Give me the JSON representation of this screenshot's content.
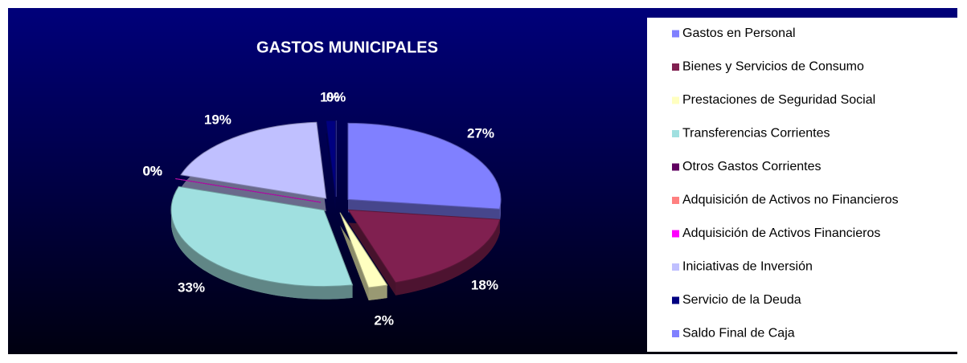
{
  "chart_data": {
    "type": "pie",
    "title": "GASTOS MUNICIPALES",
    "categories": [
      "Gastos en Personal",
      "Bienes y Servicios de Consumo",
      "Prestaciones de Seguridad Social",
      "Transferencias Corrientes",
      "Otros Gastos Corrientes",
      "Adquisición de Activos no Financieros",
      "Adquisición de Activos Financieros",
      "Iniciativas de Inversión",
      "Servicio de la Deuda",
      "Saldo Final de Caja"
    ],
    "values": [
      27,
      18,
      2,
      33,
      0,
      0,
      0,
      19,
      1,
      0
    ],
    "value_labels": [
      "27%",
      "18%",
      "2%",
      "33%",
      "0%",
      "0%",
      "0%",
      "19%",
      "1%",
      "0%"
    ],
    "colors": [
      "#8080ff",
      "#802050",
      "#ffffc0",
      "#a0e0e0",
      "#600060",
      "#ff8080",
      "#ff00ff",
      "#c0c0ff",
      "#000080",
      "#8080ff"
    ],
    "legend": "right"
  }
}
